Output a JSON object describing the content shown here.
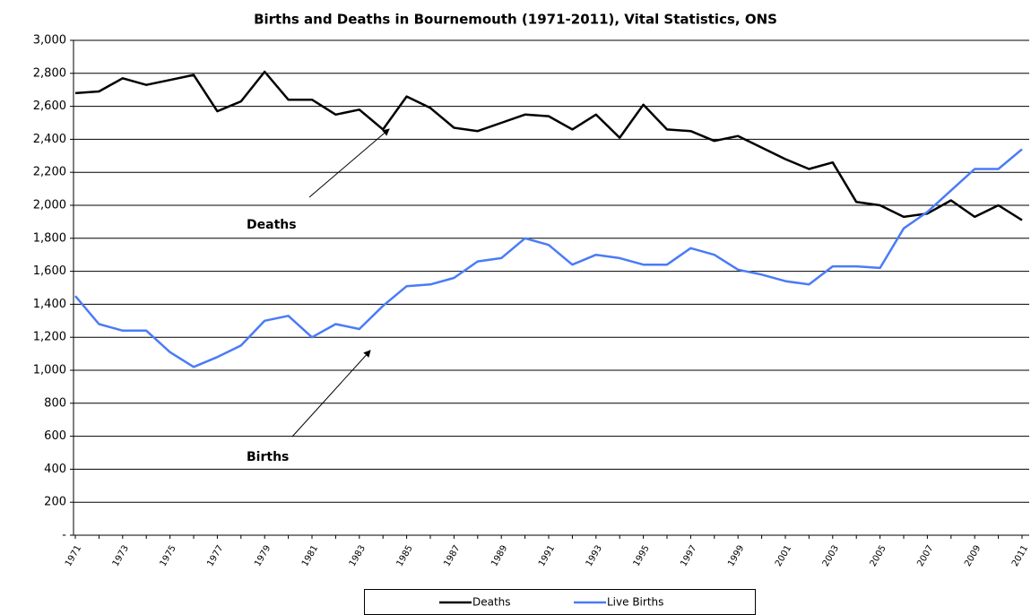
{
  "chart_data": {
    "type": "line",
    "title": "Births and Deaths in Bournemouth (1971-2011), Vital Statistics, ONS",
    "categories": [
      "1971",
      null,
      "1973",
      null,
      "1975",
      null,
      "1977",
      null,
      "1979",
      null,
      "1981",
      null,
      "1983",
      null,
      "1985",
      null,
      "1987",
      null,
      "1989",
      null,
      "1991",
      null,
      "1993",
      null,
      "1995",
      null,
      "1997",
      null,
      "1999",
      null,
      "2001",
      null,
      "2003",
      null,
      "2005",
      null,
      "2007",
      null,
      "2009",
      null,
      "2011"
    ],
    "series": [
      {
        "name": "Deaths",
        "color": "#000000",
        "values": [
          2680,
          2690,
          2770,
          2730,
          2760,
          2790,
          2570,
          2630,
          2810,
          2640,
          2640,
          2550,
          2580,
          2460,
          2660,
          2590,
          2470,
          2450,
          2500,
          2550,
          2540,
          2460,
          2550,
          2410,
          2610,
          2460,
          2450,
          2390,
          2420,
          2350,
          2280,
          2220,
          2260,
          2020,
          2000,
          1930,
          1950,
          2030,
          1930,
          2000,
          1910
        ]
      },
      {
        "name": "Live Births",
        "color": "#4a7bf7",
        "values": [
          1450,
          1280,
          1240,
          1240,
          1110,
          1020,
          1080,
          1150,
          1300,
          1330,
          1200,
          1280,
          1250,
          1390,
          1510,
          1520,
          1560,
          1660,
          1680,
          1800,
          1760,
          1640,
          1700,
          1680,
          1640,
          1640,
          1740,
          1700,
          1610,
          1580,
          1540,
          1520,
          1630,
          1630,
          1620,
          1860,
          1960,
          2090,
          2220,
          2220,
          2340
        ]
      }
    ],
    "ylim": [
      0,
      3000
    ],
    "yticks": [
      {
        "value": 0,
        "label": "-"
      },
      200,
      400,
      600,
      800,
      {
        "value": 1000,
        "label": "1,000"
      },
      {
        "value": 1200,
        "label": "1,200"
      },
      {
        "value": 1400,
        "label": "1,400"
      },
      {
        "value": 1600,
        "label": "1,600"
      },
      {
        "value": 1800,
        "label": "1,800"
      },
      {
        "value": 2000,
        "label": "2,000"
      },
      {
        "value": 2200,
        "label": "2,200"
      },
      {
        "value": 2400,
        "label": "2,400"
      },
      {
        "value": 2600,
        "label": "2,600"
      },
      {
        "value": 2800,
        "label": "2,800"
      },
      {
        "value": 3000,
        "label": "3,000"
      }
    ],
    "grid": true,
    "legend": "bottom",
    "annotations": [
      {
        "text": "Deaths"
      },
      {
        "text": "Births"
      }
    ]
  }
}
